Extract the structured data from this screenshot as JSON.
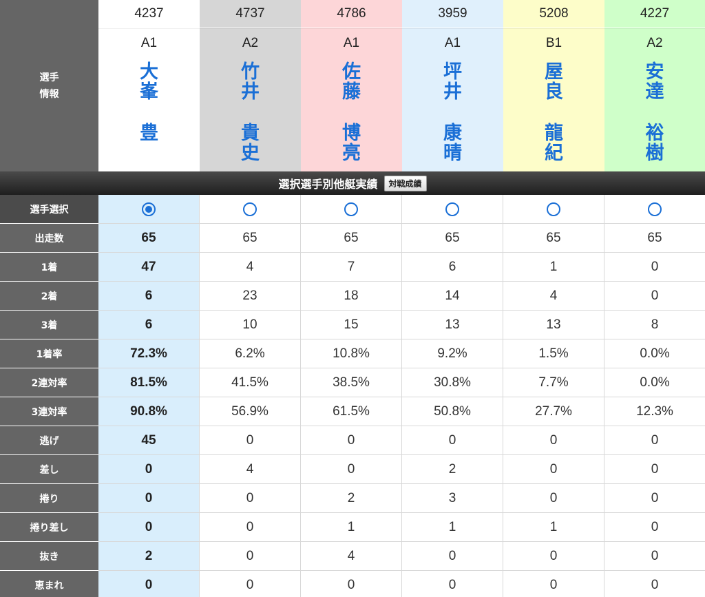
{
  "info_label": "選手\n情報",
  "racers": [
    {
      "id": "4237",
      "class": "A1",
      "surname": [
        "大",
        "峯"
      ],
      "given": [
        "豊"
      ],
      "bg": "#ffffff",
      "selected": true
    },
    {
      "id": "4737",
      "class": "A2",
      "surname": [
        "竹",
        "井"
      ],
      "given": [
        "貴",
        "史"
      ],
      "bg": "#d6d6d6",
      "selected": false
    },
    {
      "id": "4786",
      "class": "A1",
      "surname": [
        "佐",
        "藤"
      ],
      "given": [
        "博",
        "亮"
      ],
      "bg": "#fdd6d8",
      "selected": false
    },
    {
      "id": "3959",
      "class": "A1",
      "surname": [
        "坪",
        "井"
      ],
      "given": [
        "康",
        "晴"
      ],
      "bg": "#e0f0fc",
      "selected": false
    },
    {
      "id": "5208",
      "class": "B1",
      "surname": [
        "屋",
        "良"
      ],
      "given": [
        "龍",
        "紀"
      ],
      "bg": "#fdfdc9",
      "selected": false
    },
    {
      "id": "4227",
      "class": "A2",
      "surname": [
        "安",
        "達"
      ],
      "given": [
        "裕",
        "樹"
      ],
      "bg": "#cfffc9",
      "selected": false
    }
  ],
  "section": {
    "title": "選択選手別他艇実績",
    "button": "対戦成績"
  },
  "select_label": "選手選択",
  "stats": [
    {
      "label": "出走数",
      "values": [
        "65",
        "65",
        "65",
        "65",
        "65",
        "65"
      ]
    },
    {
      "label": "1着",
      "values": [
        "47",
        "4",
        "7",
        "6",
        "1",
        "0"
      ]
    },
    {
      "label": "2着",
      "values": [
        "6",
        "23",
        "18",
        "14",
        "4",
        "0"
      ]
    },
    {
      "label": "3着",
      "values": [
        "6",
        "10",
        "15",
        "13",
        "13",
        "8"
      ]
    },
    {
      "label": "1着率",
      "values": [
        "72.3%",
        "6.2%",
        "10.8%",
        "9.2%",
        "1.5%",
        "0.0%"
      ]
    },
    {
      "label": "2連対率",
      "values": [
        "81.5%",
        "41.5%",
        "38.5%",
        "30.8%",
        "7.7%",
        "0.0%"
      ]
    },
    {
      "label": "3連対率",
      "values": [
        "90.8%",
        "56.9%",
        "61.5%",
        "50.8%",
        "27.7%",
        "12.3%"
      ]
    },
    {
      "label": "逃げ",
      "values": [
        "45",
        "0",
        "0",
        "0",
        "0",
        "0"
      ]
    },
    {
      "label": "差し",
      "values": [
        "0",
        "4",
        "0",
        "2",
        "0",
        "0"
      ]
    },
    {
      "label": "捲り",
      "values": [
        "0",
        "0",
        "2",
        "3",
        "0",
        "0"
      ]
    },
    {
      "label": "捲り差し",
      "values": [
        "0",
        "0",
        "1",
        "1",
        "1",
        "0"
      ]
    },
    {
      "label": "抜き",
      "values": [
        "2",
        "0",
        "4",
        "0",
        "0",
        "0"
      ]
    },
    {
      "label": "恵まれ",
      "values": [
        "0",
        "0",
        "0",
        "0",
        "0",
        "0"
      ]
    }
  ]
}
